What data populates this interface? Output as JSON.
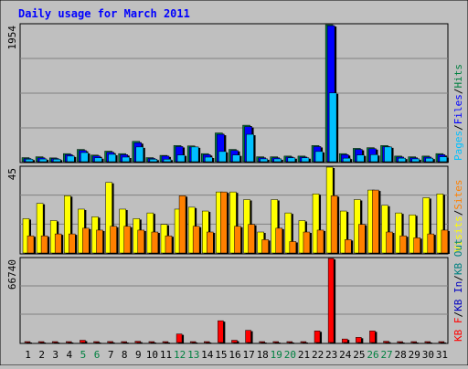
{
  "title": "Daily usage for March 2011",
  "colors": {
    "hits": "#008040",
    "files": "#0000ff",
    "pages": "#00c0ff",
    "visits": "#ffff00",
    "sites": "#ff8000",
    "kbf": "#ff0000",
    "kbin": "#0000c0",
    "kbout": "#008080",
    "title": "#0000ff",
    "panel_bg": "#bfbfbf",
    "grid": "#808080",
    "weekend_label": "#008040",
    "day_label": "#000000"
  },
  "chart_data": [
    {
      "type": "bar",
      "panel": "top",
      "max_label": "1954",
      "ymax": 1954,
      "legend": [
        "Pages",
        "/",
        "Files",
        "/",
        "Hits"
      ],
      "categories": [
        "1",
        "2",
        "3",
        "4",
        "5",
        "6",
        "7",
        "8",
        "9",
        "10",
        "11",
        "12",
        "13",
        "14",
        "15",
        "16",
        "17",
        "18",
        "19",
        "20",
        "21",
        "22",
        "23",
        "24",
        "25",
        "26",
        "27",
        "28",
        "29",
        "30",
        "31"
      ],
      "series": [
        {
          "name": "Hits",
          "values": [
            58,
            70,
            54,
            115,
            175,
            94,
            150,
            115,
            290,
            58,
            90,
            230,
            225,
            115,
            410,
            175,
            520,
            70,
            70,
            80,
            80,
            230,
            1954,
            115,
            190,
            200,
            230,
            80,
            70,
            80,
            115
          ]
        },
        {
          "name": "Files",
          "values": [
            45,
            55,
            45,
            100,
            160,
            82,
            135,
            100,
            270,
            46,
            80,
            215,
            210,
            100,
            390,
            160,
            500,
            56,
            56,
            66,
            66,
            215,
            1940,
            100,
            175,
            185,
            215,
            66,
            56,
            66,
            100
          ]
        },
        {
          "name": "Pages",
          "values": [
            35,
            38,
            35,
            80,
            130,
            55,
            105,
            65,
            210,
            35,
            35,
            95,
            210,
            65,
            145,
            95,
            390,
            40,
            40,
            55,
            55,
            145,
            980,
            50,
            95,
            100,
            210,
            50,
            40,
            50,
            70
          ]
        }
      ]
    },
    {
      "type": "bar",
      "panel": "middle",
      "max_label": "45",
      "ymax": 45,
      "legend": [
        "Visits",
        "/",
        "Sites"
      ],
      "categories": [
        "1",
        "2",
        "3",
        "4",
        "5",
        "6",
        "7",
        "8",
        "9",
        "10",
        "11",
        "12",
        "13",
        "14",
        "15",
        "16",
        "17",
        "18",
        "19",
        "20",
        "21",
        "22",
        "23",
        "24",
        "25",
        "26",
        "27",
        "28",
        "29",
        "30",
        "31"
      ],
      "series": [
        {
          "name": "Visits",
          "values": [
            18,
            26,
            17,
            30,
            23,
            19,
            37,
            23,
            18,
            21,
            15,
            23,
            24,
            22,
            32,
            32,
            28,
            11,
            28,
            21,
            17,
            31,
            45,
            22,
            28,
            33,
            25,
            21,
            20,
            29,
            31
          ]
        },
        {
          "name": "Sites",
          "values": [
            9,
            9,
            10,
            10,
            13,
            12,
            14,
            14,
            12,
            11,
            9,
            30,
            14,
            11,
            32,
            14,
            15,
            7,
            13,
            6,
            11,
            12,
            30,
            7,
            15,
            33,
            11,
            9,
            8,
            10,
            12
          ]
        }
      ]
    },
    {
      "type": "bar",
      "panel": "bottom",
      "max_label": "66740",
      "ymax": 66740,
      "legend": [
        "KB F",
        "/",
        "KB In",
        "/",
        "KB Out"
      ],
      "categories": [
        "1",
        "2",
        "3",
        "4",
        "5",
        "6",
        "7",
        "8",
        "9",
        "10",
        "11",
        "12",
        "13",
        "14",
        "15",
        "16",
        "17",
        "18",
        "19",
        "20",
        "21",
        "22",
        "23",
        "24",
        "25",
        "26",
        "27",
        "28",
        "29",
        "30",
        "31"
      ],
      "weekend_days": [
        5,
        6,
        12,
        13,
        19,
        20,
        26,
        27
      ],
      "series": [
        {
          "name": "KB F",
          "values": [
            300,
            300,
            300,
            400,
            1800,
            300,
            800,
            400,
            1000,
            300,
            400,
            6800,
            400,
            400,
            17300,
            1800,
            9700,
            400,
            400,
            600,
            400,
            9200,
            66740,
            2800,
            4100,
            9200,
            1000,
            400,
            300,
            400,
            600
          ]
        }
      ]
    }
  ]
}
